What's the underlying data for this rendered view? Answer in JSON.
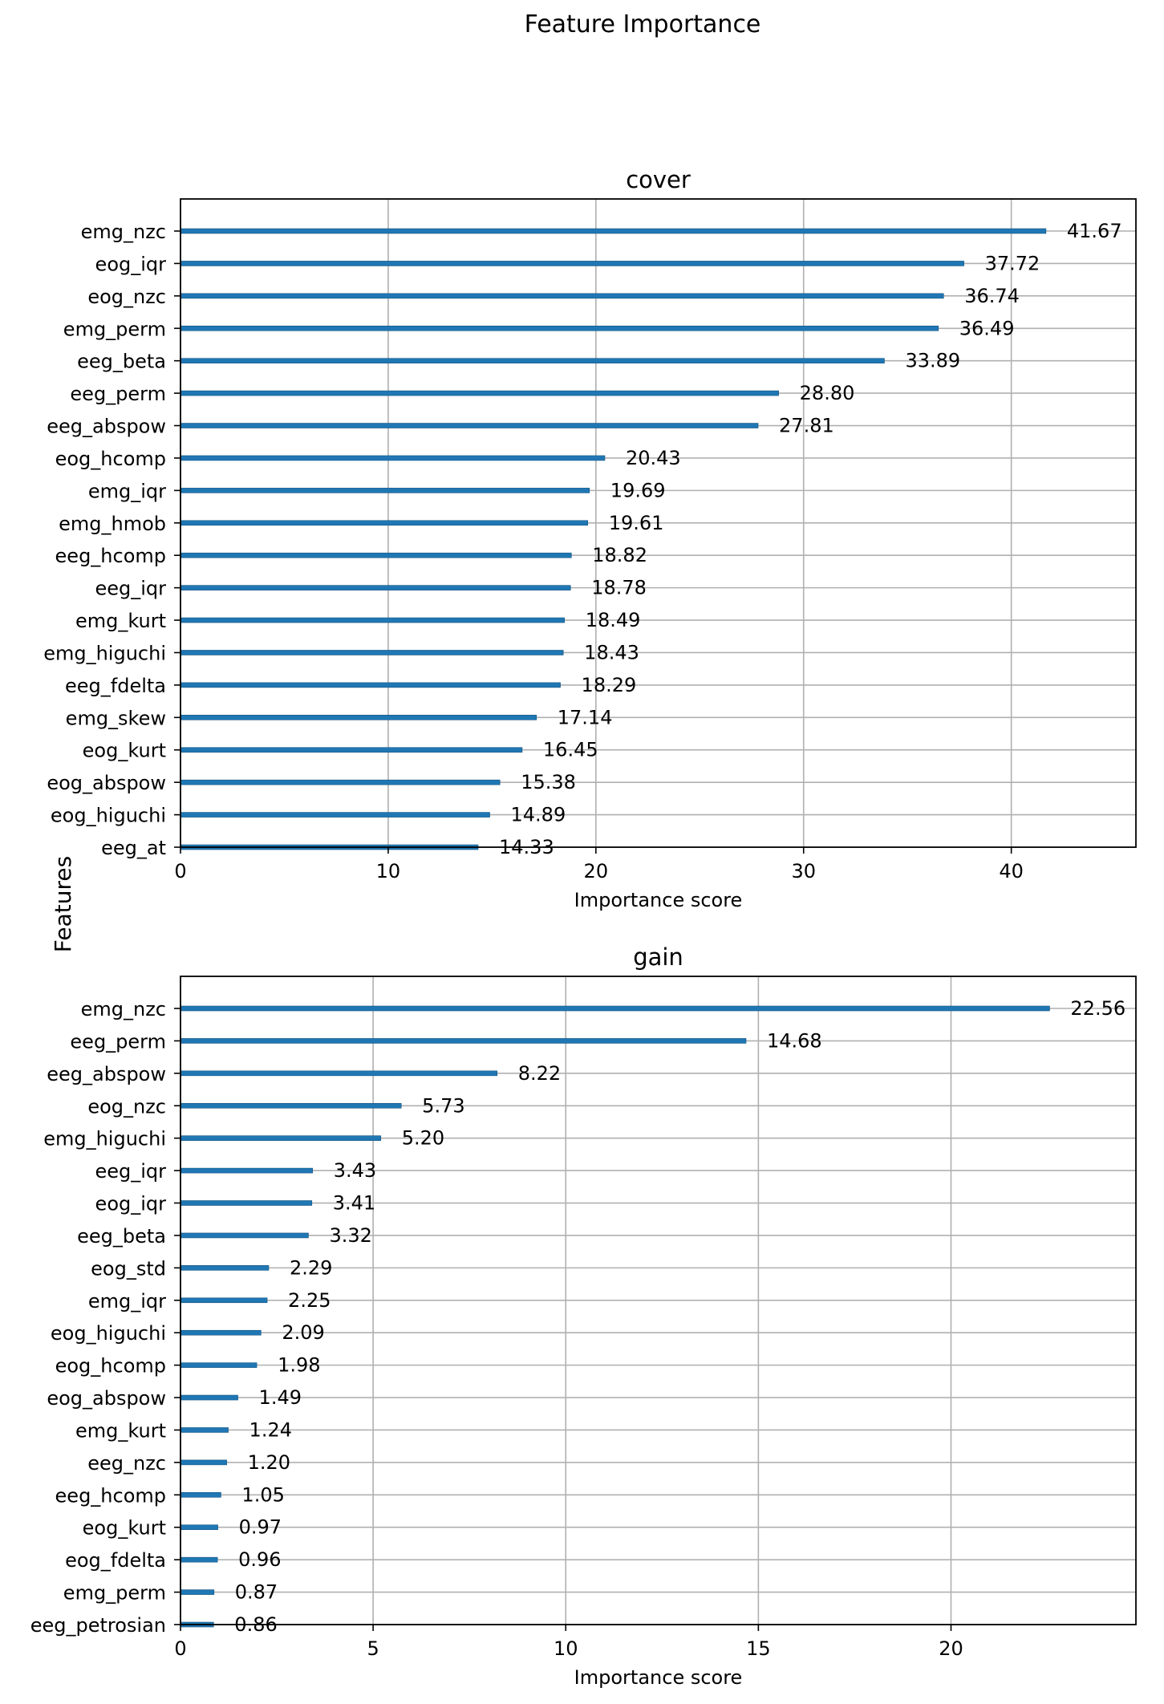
{
  "figure": {
    "suptitle": "Feature Importance",
    "shared_ylabel": "Features"
  },
  "chart_data": [
    {
      "type": "bar",
      "orientation": "horizontal",
      "title": "cover",
      "xlabel": "Importance score",
      "ylabel": "",
      "xlim": [
        0,
        46
      ],
      "xticks": [
        0,
        10,
        20,
        30,
        40
      ],
      "grid": true,
      "value_labels": [
        "41.67",
        "37.72",
        "36.74",
        "36.49",
        "33.89",
        "28.80",
        "27.81",
        "20.43",
        "19.69",
        "19.61",
        "18.82",
        "18.78",
        "18.49",
        "18.43",
        "18.29",
        "17.14",
        "16.45",
        "15.38",
        "14.89",
        "14.33"
      ],
      "categories": [
        "emg_nzc",
        "eog_iqr",
        "eog_nzc",
        "emg_perm",
        "eeg_beta",
        "eeg_perm",
        "eeg_abspow",
        "eog_hcomp",
        "emg_iqr",
        "emg_hmob",
        "eeg_hcomp",
        "eeg_iqr",
        "emg_kurt",
        "emg_higuchi",
        "eeg_fdelta",
        "emg_skew",
        "eog_kurt",
        "eog_abspow",
        "eog_higuchi",
        "eeg_at"
      ],
      "values": [
        41.67,
        37.72,
        36.74,
        36.49,
        33.89,
        28.8,
        27.81,
        20.43,
        19.69,
        19.61,
        18.82,
        18.78,
        18.49,
        18.43,
        18.29,
        17.14,
        16.45,
        15.38,
        14.89,
        14.33
      ]
    },
    {
      "type": "bar",
      "orientation": "horizontal",
      "title": "gain",
      "xlabel": "Importance score",
      "ylabel": "",
      "xlim": [
        0,
        24.8
      ],
      "xticks": [
        0,
        5,
        10,
        15,
        20
      ],
      "grid": true,
      "value_labels": [
        "22.56",
        "14.68",
        "8.22",
        "5.73",
        "5.20",
        "3.43",
        "3.41",
        "3.32",
        "2.29",
        "2.25",
        "2.09",
        "1.98",
        "1.49",
        "1.24",
        "1.20",
        "1.05",
        "0.97",
        "0.96",
        "0.87",
        "0.86"
      ],
      "categories": [
        "emg_nzc",
        "eeg_perm",
        "eeg_abspow",
        "eog_nzc",
        "emg_higuchi",
        "eeg_iqr",
        "eog_iqr",
        "eeg_beta",
        "eog_std",
        "emg_iqr",
        "eog_higuchi",
        "eog_hcomp",
        "eog_abspow",
        "emg_kurt",
        "eeg_nzc",
        "eeg_hcomp",
        "eog_kurt",
        "eog_fdelta",
        "emg_perm",
        "eeg_petrosian"
      ],
      "values": [
        22.56,
        14.68,
        8.22,
        5.73,
        5.2,
        3.43,
        3.41,
        3.32,
        2.29,
        2.25,
        2.09,
        1.98,
        1.49,
        1.24,
        1.2,
        1.05,
        0.97,
        0.96,
        0.87,
        0.86
      ]
    }
  ],
  "colors": {
    "bar_fill": "#1f77b4",
    "grid": "#b0b0b0",
    "axis": "#000000"
  }
}
